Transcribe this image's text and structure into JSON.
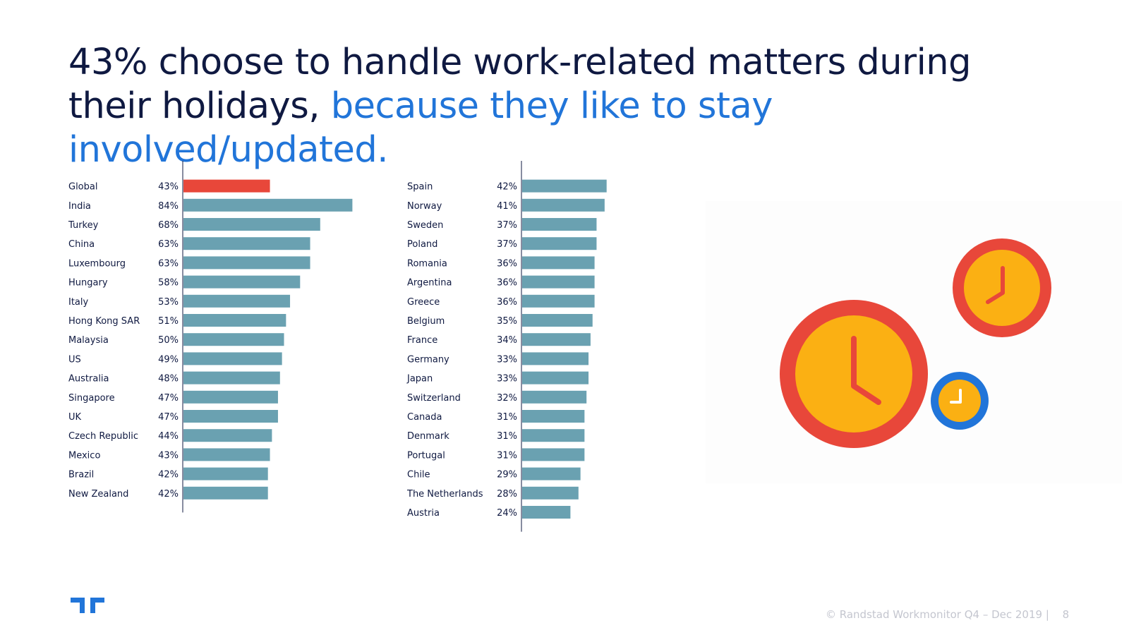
{
  "title": {
    "main": "43% choose to handle work-related matters during their holidays,",
    "accent": "because they like to stay involved/updated."
  },
  "colors": {
    "highlight": "#e8473a",
    "bar": "#6aa1b1",
    "text": "#0f1941",
    "accent": "#2175d9"
  },
  "chart_data": [
    {
      "type": "bar",
      "orientation": "horizontal",
      "value_unit": "%",
      "highlight": "Global",
      "xlim": [
        0,
        100
      ],
      "categories": [
        "Global",
        "India",
        "Turkey",
        "China",
        "Luxembourg",
        "Hungary",
        "Italy",
        "Hong Kong SAR",
        "Malaysia",
        "US",
        "Australia",
        "Singapore",
        "UK",
        "Czech Republic",
        "Mexico",
        "Brazil",
        "New Zealand"
      ],
      "values": [
        43,
        84,
        68,
        63,
        63,
        58,
        53,
        51,
        50,
        49,
        48,
        47,
        47,
        44,
        43,
        42,
        42
      ]
    },
    {
      "type": "bar",
      "orientation": "horizontal",
      "value_unit": "%",
      "xlim": [
        0,
        100
      ],
      "categories": [
        "Spain",
        "Norway",
        "Sweden",
        "Poland",
        "Romania",
        "Argentina",
        "Greece",
        "Belgium",
        "France",
        "Germany",
        "Japan",
        "Switzerland",
        "Canada",
        "Denmark",
        "Portugal",
        "Chile",
        "The Netherlands",
        "Austria"
      ],
      "values": [
        42,
        41,
        37,
        37,
        36,
        36,
        36,
        35,
        34,
        33,
        33,
        32,
        31,
        31,
        31,
        29,
        28,
        24
      ]
    }
  ],
  "illustration": {
    "icons": [
      "large-clock-icon",
      "medium-clock-icon",
      "small-clock-icon"
    ]
  },
  "footer": {
    "copyright": "© Randstad Workmonitor Q4 – Dec 2019 |",
    "page_number": "8"
  },
  "logo": {
    "name": "randstad-logo-icon"
  }
}
